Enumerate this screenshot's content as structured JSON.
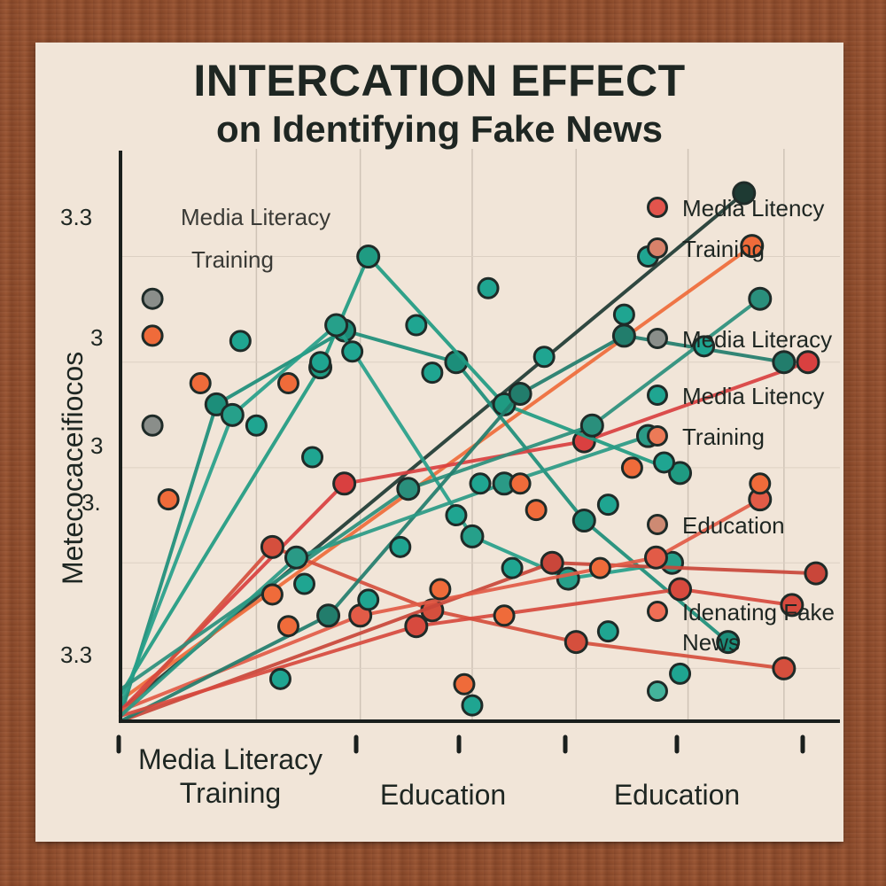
{
  "chart_data": {
    "type": "line",
    "title": "INTERCATION EFFECT",
    "subtitle": "on Identifying Fake News",
    "ylabel": "Metecocaceifiocos",
    "y_tick_labels": [
      "3.3",
      "3",
      "3",
      "3.",
      "3.3"
    ],
    "x_labels": [
      "Media Literacy Training",
      "Education",
      "Education"
    ],
    "legend_left": [
      "Media Literacy",
      "Training"
    ],
    "legend": [
      {
        "label": "Media Litency",
        "color": "#e2544c"
      },
      {
        "label": "Training",
        "color": "#d8826a"
      },
      {
        "label": "Media Literacy",
        "color": "#8a8e8a"
      },
      {
        "label": "Media Litency",
        "color": "#1fa591"
      },
      {
        "label": "Training",
        "color": "#ec7a57"
      },
      {
        "label": "Education",
        "color": "#cd8a73"
      },
      {
        "label": "Idenating Fake News",
        "color": "#f06e55"
      },
      {
        "label": "",
        "color": "#43b39b"
      }
    ],
    "grid": true,
    "series": [
      {
        "color": "#1e3a33",
        "points": [
          [
            1,
            0.02
          ],
          [
            8.8,
            1.0
          ]
        ]
      },
      {
        "color": "#ef6b3a",
        "points": [
          [
            1,
            0.04
          ],
          [
            8.9,
            0.9
          ]
        ]
      },
      {
        "color": "#1c8e7a",
        "points": [
          [
            1,
            0.01
          ],
          [
            2.2,
            0.6
          ],
          [
            3.8,
            0.74
          ],
          [
            5.2,
            0.68
          ],
          [
            6.8,
            0.38
          ],
          [
            8.6,
            0.15
          ]
        ]
      },
      {
        "color": "#d94040",
        "points": [
          [
            1,
            0.02
          ],
          [
            3.8,
            0.45
          ],
          [
            6.8,
            0.53
          ],
          [
            9.6,
            0.68
          ]
        ]
      },
      {
        "color": "#d54f3d",
        "points": [
          [
            1,
            0.01
          ],
          [
            2.9,
            0.33
          ],
          [
            4.9,
            0.21
          ],
          [
            6.7,
            0.15
          ],
          [
            9.3,
            0.1
          ]
        ]
      },
      {
        "color": "#1f9b82",
        "points": [
          [
            1,
            0.05
          ],
          [
            3.5,
            0.67
          ],
          [
            4.1,
            0.88
          ],
          [
            5.8,
            0.6
          ],
          [
            8.0,
            0.47
          ]
        ]
      },
      {
        "color": "#26a08a",
        "points": [
          [
            1,
            0.03
          ],
          [
            2.4,
            0.58
          ],
          [
            3.7,
            0.75
          ],
          [
            5.4,
            0.35
          ],
          [
            6.6,
            0.27
          ],
          [
            7.9,
            0.3
          ]
        ]
      },
      {
        "color": "#2a8f7c",
        "points": [
          [
            1,
            0.06
          ],
          [
            4.6,
            0.44
          ],
          [
            6.9,
            0.56
          ],
          [
            9.0,
            0.8
          ]
        ]
      },
      {
        "color": "#c9463a",
        "points": [
          [
            1,
            0.0
          ],
          [
            6.4,
            0.3
          ],
          [
            9.7,
            0.28
          ]
        ]
      },
      {
        "color": "#e25b47",
        "points": [
          [
            1,
            0.02
          ],
          [
            4.0,
            0.2
          ],
          [
            7.7,
            0.31
          ],
          [
            9.0,
            0.42
          ]
        ]
      },
      {
        "color": "#227d6c",
        "points": [
          [
            1,
            0.0
          ],
          [
            3.6,
            0.2
          ],
          [
            6.0,
            0.62
          ],
          [
            7.3,
            0.73
          ],
          [
            9.3,
            0.68
          ]
        ]
      },
      {
        "color": "#d74a3e",
        "points": [
          [
            1,
            0.01
          ],
          [
            4.7,
            0.18
          ],
          [
            8.0,
            0.25
          ],
          [
            9.4,
            0.22
          ]
        ]
      },
      {
        "color": "#2a9a86",
        "points": [
          [
            1,
            0.01
          ],
          [
            3.2,
            0.31
          ],
          [
            5.8,
            0.45
          ],
          [
            7.6,
            0.54
          ]
        ]
      }
    ],
    "scatter_points": [
      [
        1.4,
        0.8,
        "#8a8e8a"
      ],
      [
        1.4,
        0.73,
        "#ef6b3a"
      ],
      [
        2.5,
        0.72,
        "#1fa591"
      ],
      [
        2.0,
        0.64,
        "#ef6b3a"
      ],
      [
        3.1,
        0.64,
        "#ef6b3a"
      ],
      [
        1.4,
        0.56,
        "#8a8e8a"
      ],
      [
        1.6,
        0.42,
        "#ef6b3a"
      ],
      [
        2.7,
        0.56,
        "#1fa591"
      ],
      [
        3.5,
        0.68,
        "#1fa591"
      ],
      [
        4.7,
        0.75,
        "#1fa591"
      ],
      [
        5.6,
        0.82,
        "#1fa591"
      ],
      [
        3.9,
        0.7,
        "#1fa591"
      ],
      [
        4.9,
        0.66,
        "#1fa591"
      ],
      [
        6.3,
        0.69,
        "#1fa591"
      ],
      [
        7.6,
        0.88,
        "#1fa591"
      ],
      [
        8.3,
        0.71,
        "#1fa591"
      ],
      [
        7.3,
        0.77,
        "#1fa591"
      ],
      [
        3.4,
        0.5,
        "#1fa591"
      ],
      [
        5.5,
        0.45,
        "#1fa591"
      ],
      [
        7.4,
        0.48,
        "#ef6b3a"
      ],
      [
        6.0,
        0.45,
        "#ef6b3a"
      ],
      [
        5.2,
        0.39,
        "#1fa591"
      ],
      [
        4.5,
        0.33,
        "#1fa591"
      ],
      [
        6.2,
        0.4,
        "#ef6b3a"
      ],
      [
        3.3,
        0.26,
        "#1fa591"
      ],
      [
        2.9,
        0.24,
        "#ef6b3a"
      ],
      [
        4.1,
        0.23,
        "#1fa591"
      ],
      [
        5.9,
        0.29,
        "#1fa591"
      ],
      [
        7.0,
        0.29,
        "#ef6b3a"
      ],
      [
        5.0,
        0.25,
        "#ef6b3a"
      ],
      [
        3.1,
        0.18,
        "#ef6b3a"
      ],
      [
        5.8,
        0.2,
        "#ef6b3a"
      ],
      [
        7.1,
        0.17,
        "#1fa591"
      ],
      [
        3.0,
        0.08,
        "#1fa591"
      ],
      [
        5.3,
        0.07,
        "#ef6b3a"
      ],
      [
        5.4,
        0.03,
        "#1fa591"
      ],
      [
        8.0,
        0.09,
        "#1fa591"
      ],
      [
        7.1,
        0.41,
        "#1fa591"
      ],
      [
        9.0,
        0.45,
        "#ef6b3a"
      ],
      [
        7.8,
        0.49,
        "#1fa591"
      ]
    ]
  }
}
